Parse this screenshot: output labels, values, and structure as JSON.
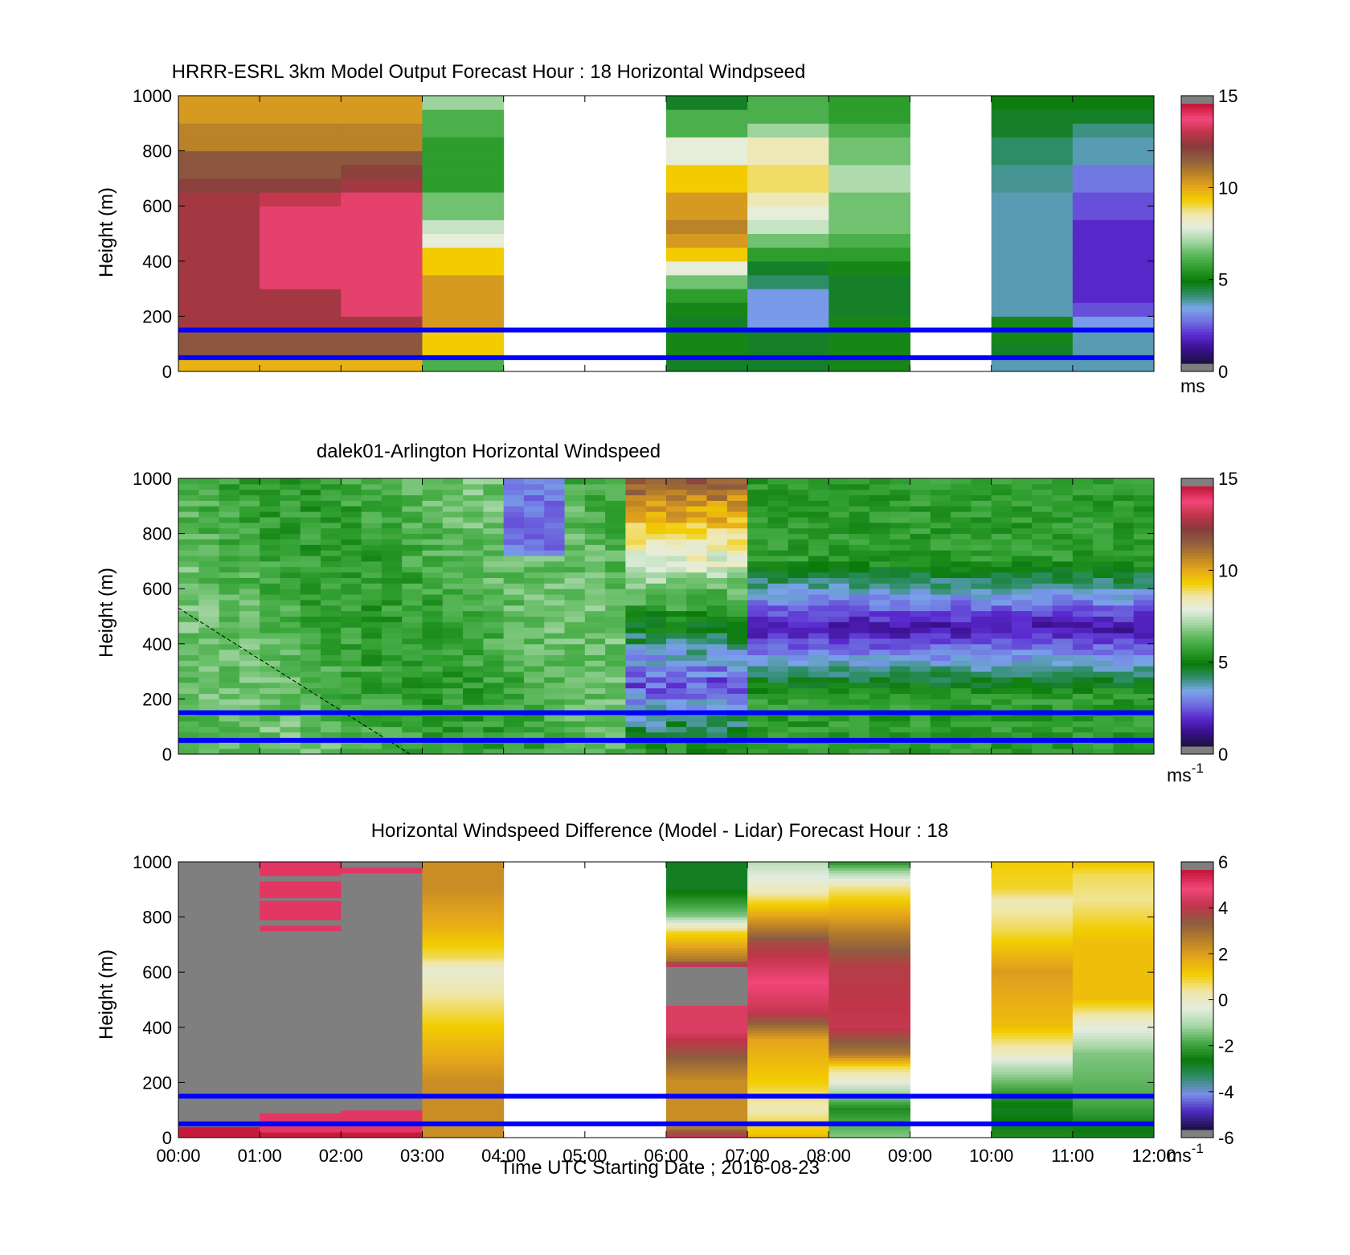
{
  "colors": {
    "speed_ramp": [
      "#807f7f",
      "#1e1245",
      "#3a108f",
      "#5b2ad0",
      "#6f6fe0",
      "#7aa5ea",
      "#2f8e6a",
      "#0a7a0a",
      "#2e9e2e",
      "#5fba5f",
      "#a7d7a7",
      "#e5eee0",
      "#f0e6a8",
      "#f2cd00",
      "#e5a51c",
      "#b7802a",
      "#8e5d3f",
      "#8a3b3b",
      "#c0354a",
      "#f2467a",
      "#c61a3d",
      "#807f7f"
    ],
    "diff_ramp": [
      "#807f7f",
      "#1e1245",
      "#4b2bc0",
      "#7a8ee8",
      "#2f8e6a",
      "#0a7a0a",
      "#45a845",
      "#a7d7a7",
      "#e4ecdf",
      "#f0e6a8",
      "#f2cd00",
      "#e5a51c",
      "#b7802a",
      "#8e5d3f",
      "#c0354a",
      "#f2467a",
      "#c61a3d",
      "#807f7f"
    ],
    "blue_lines": "#0000ff",
    "missing": "#807f7f"
  },
  "chart_data": [
    {
      "type": "heatmap",
      "title": "HRRR-ESRL 3km Model Output   Forecast Hour : 18 Horizontal Windpseed",
      "ylabel": "Height (m)",
      "xlabel": "",
      "ylim": [
        0,
        1000
      ],
      "yticks": [
        "0",
        "200",
        "400",
        "600",
        "800",
        "1000"
      ],
      "x": [
        "00:00",
        "01:00",
        "02:00",
        "03:00",
        "04:00",
        "05:00",
        "06:00",
        "07:00",
        "08:00",
        "09:00",
        "10:00",
        "11:00",
        "12:00"
      ],
      "colorbar": {
        "min": 0,
        "max": 15,
        "ticks": [
          "0",
          "5",
          "10",
          "15"
        ],
        "unit_label": "ms",
        "unit_sup": ""
      },
      "heights_m": [
        25,
        75,
        125,
        175,
        225,
        275,
        325,
        375,
        425,
        475,
        525,
        575,
        625,
        675,
        725,
        775,
        825,
        875,
        925,
        975
      ],
      "columns": [
        {
          "time": "00:00",
          "values": [
            10,
            12,
            12,
            13,
            13,
            13,
            13,
            13,
            13,
            13,
            13,
            13,
            13,
            12.5,
            12,
            12,
            11,
            11,
            10.5,
            10.5
          ]
        },
        {
          "time": "01:00",
          "values": [
            10,
            12,
            12,
            13,
            13,
            13,
            14,
            14,
            14,
            14,
            14,
            14,
            13.5,
            12.5,
            12,
            12,
            11,
            11,
            10.5,
            10.5
          ]
        },
        {
          "time": "02:00",
          "values": [
            10,
            12,
            12,
            13,
            14,
            14,
            14,
            14,
            14,
            14,
            14,
            14,
            14,
            13,
            12.5,
            12,
            11,
            11,
            10.5,
            10.5
          ]
        },
        {
          "time": "03:00",
          "values": [
            6,
            9.5,
            9.5,
            10.5,
            10.5,
            10.5,
            10.5,
            9.5,
            9.5,
            8,
            7.5,
            6.5,
            6.5,
            5.5,
            5.5,
            5.5,
            5.5,
            6,
            6,
            7
          ]
        },
        {
          "time": "04:00",
          "values": []
        },
        {
          "time": "05:00",
          "values": []
        },
        {
          "time": "06:00",
          "values": [
            4.5,
            5,
            5,
            4.5,
            5,
            5.5,
            6.5,
            8,
            9.5,
            10.5,
            11,
            10.5,
            10.5,
            9.5,
            9.5,
            8,
            8,
            6,
            6,
            4.5
          ]
        },
        {
          "time": "07:00",
          "values": [
            4.5,
            4.5,
            4.5,
            3,
            3,
            3,
            4,
            4.5,
            5.5,
            6.5,
            7.5,
            8,
            8.5,
            9,
            9,
            8.5,
            8.5,
            7,
            6,
            6
          ]
        },
        {
          "time": "08:00",
          "values": [
            5,
            5,
            5,
            5,
            4.5,
            4.5,
            4.5,
            5,
            5.5,
            6,
            6.5,
            6.5,
            6.5,
            7.2,
            7.2,
            6.5,
            6.5,
            6,
            5.5,
            5.5
          ]
        },
        {
          "time": "09:00",
          "values": []
        },
        {
          "time": "10:00",
          "values": [
            3.5,
            4.5,
            5,
            5,
            3.5,
            3.5,
            3.5,
            3.5,
            3.5,
            3.5,
            3.5,
            3.5,
            3.5,
            3.7,
            3.7,
            4,
            4,
            4.5,
            4.5,
            4.8
          ]
        },
        {
          "time": "11:00",
          "values": [
            3.5,
            3.5,
            3.5,
            3,
            2,
            1.5,
            1.5,
            1.5,
            1.5,
            1.5,
            1.5,
            2,
            2,
            2.5,
            2.5,
            3.5,
            3.5,
            3.8,
            4.5,
            4.8
          ]
        }
      ],
      "horizontal_lines_m": [
        50,
        150
      ]
    },
    {
      "type": "heatmap",
      "title": "dalek01-Arlington  Horizontal Windspeed",
      "ylabel": "Height (m)",
      "xlabel": "",
      "ylim": [
        0,
        1000
      ],
      "yticks": [
        "0",
        "200",
        "400",
        "600",
        "800",
        "1000"
      ],
      "x": [
        "00:00",
        "01:00",
        "02:00",
        "03:00",
        "04:00",
        "05:00",
        "06:00",
        "07:00",
        "08:00",
        "09:00",
        "10:00",
        "11:00",
        "12:00"
      ],
      "colorbar": {
        "min": 0,
        "max": 15,
        "ticks": [
          "0",
          "5",
          "10",
          "15"
        ],
        "unit_label": "ms",
        "unit_sup": "-1"
      },
      "time_range_h": [
        0,
        11.85
      ],
      "time_step_h": 0.25,
      "height_step_m": 20,
      "profile_model": {
        "early_period_h": [
          0,
          5.5
        ],
        "early_speed_ms": [
          5.5,
          6.5
        ],
        "late_jet_core_h": [
          7.0,
          11.8
        ],
        "late_jet_core_height_m": 450,
        "late_jet_core_speed_ms": 1.0,
        "late_surface_speed_ms": 5.5
      },
      "horizontal_lines_m": [
        50,
        150
      ],
      "dashed_line_endpoints": [
        {
          "time_h": 0.0,
          "height_m": 530
        },
        {
          "time_h": 2.85,
          "height_m": 0
        }
      ]
    },
    {
      "type": "heatmap",
      "title": "Horizontal Windspeed Difference (Model - Lidar) Forecast Hour : 18",
      "ylabel": "Height (m)",
      "xlabel": "Time UTC  Starting Date ; 2016-08-23",
      "ylim": [
        0,
        1000
      ],
      "yticks": [
        "0",
        "200",
        "400",
        "600",
        "800",
        "1000"
      ],
      "x": [
        "00:00",
        "01:00",
        "02:00",
        "03:00",
        "04:00",
        "05:00",
        "06:00",
        "07:00",
        "08:00",
        "09:00",
        "10:00",
        "11:00",
        "12:00"
      ],
      "colorbar": {
        "min": -6,
        "max": 6,
        "ticks": [
          "-6",
          "-4",
          "-2",
          "0",
          "2",
          "4",
          "6"
        ],
        "unit_label": "ms",
        "unit_sup": "-1"
      },
      "columns": [
        {
          "time": "00:00",
          "profile": [
            [
              0,
              6.5
            ],
            [
              30,
              6.5
            ],
            [
              40,
              99
            ]
          ]
        },
        {
          "time": "01:00",
          "profile": [
            [
              0,
              6.5
            ],
            [
              20,
              5.5
            ],
            [
              90,
              99
            ],
            [
              750,
              5.5
            ],
            [
              770,
              99
            ],
            [
              790,
              5.5
            ],
            [
              860,
              99
            ],
            [
              870,
              5.5
            ],
            [
              930,
              99
            ],
            [
              950,
              5.5
            ]
          ]
        },
        {
          "time": "02:00",
          "profile": [
            [
              0,
              6.5
            ],
            [
              20,
              5.5
            ],
            [
              100,
              99
            ],
            [
              960,
              5.5
            ],
            [
              980,
              99
            ]
          ]
        },
        {
          "time": "03:00",
          "profile": [
            [
              0,
              2.5
            ],
            [
              60,
              2.5
            ],
            [
              200,
              2.5
            ],
            [
              400,
              1.2
            ],
            [
              500,
              0.5
            ],
            [
              600,
              -0.2
            ],
            [
              650,
              0.8
            ],
            [
              760,
              1.8
            ],
            [
              900,
              2.5
            ],
            [
              1000,
              2.5
            ]
          ]
        },
        {
          "time": "04:00",
          "profile": []
        },
        {
          "time": "05:00",
          "profile": []
        },
        {
          "time": "06:00",
          "profile": [
            [
              0,
              4.5
            ],
            [
              40,
              2.5
            ],
            [
              200,
              2.5
            ],
            [
              380,
              4.8
            ],
            [
              480,
              99
            ],
            [
              620,
              4.5
            ],
            [
              640,
              3.0
            ],
            [
              740,
              1.0
            ],
            [
              800,
              -1.5
            ],
            [
              900,
              -3.0
            ],
            [
              1000,
              -3.0
            ]
          ]
        },
        {
          "time": "07:00",
          "profile": [
            [
              0,
              1.5
            ],
            [
              100,
              0.2
            ],
            [
              200,
              1.2
            ],
            [
              350,
              2.0
            ],
            [
              450,
              4.5
            ],
            [
              560,
              5.2
            ],
            [
              700,
              4.0
            ],
            [
              800,
              2.0
            ],
            [
              900,
              0.0
            ],
            [
              1000,
              -1.0
            ]
          ]
        },
        {
          "time": "08:00",
          "profile": [
            [
              0,
              -1.5
            ],
            [
              100,
              -2.5
            ],
            [
              250,
              0.8
            ],
            [
              300,
              3.0
            ],
            [
              400,
              4.5
            ],
            [
              620,
              4.2
            ],
            [
              730,
              3.0
            ],
            [
              900,
              0.6
            ],
            [
              1000,
              -2.5
            ]
          ]
        },
        {
          "time": "09:00",
          "profile": []
        },
        {
          "time": "10:00",
          "profile": [
            [
              0,
              -2.5
            ],
            [
              100,
              -3.0
            ],
            [
              250,
              -1.0
            ],
            [
              300,
              0.0
            ],
            [
              400,
              1.5
            ],
            [
              600,
              2.2
            ],
            [
              750,
              0.8
            ],
            [
              850,
              0.2
            ],
            [
              900,
              1.0
            ],
            [
              1000,
              1.2
            ]
          ]
        },
        {
          "time": "11:00",
          "profile": [
            [
              0,
              -3.0
            ],
            [
              120,
              -2.0
            ],
            [
              300,
              -1.5
            ],
            [
              420,
              0.0
            ],
            [
              500,
              1.5
            ],
            [
              700,
              1.5
            ],
            [
              860,
              0.5
            ],
            [
              950,
              0.8
            ],
            [
              1000,
              1.5
            ]
          ]
        }
      ],
      "horizontal_lines_m": [
        50,
        150
      ]
    }
  ]
}
